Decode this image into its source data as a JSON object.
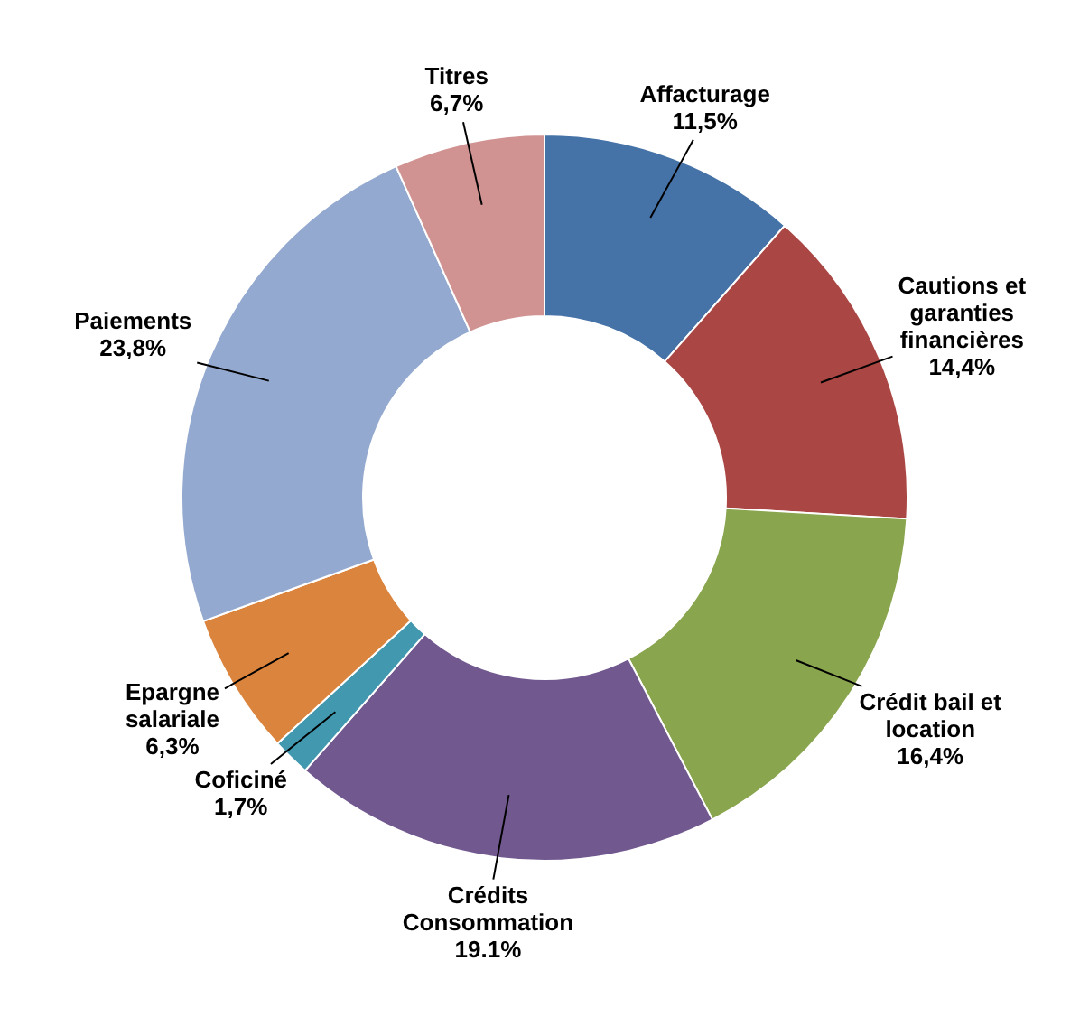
{
  "chart_data": {
    "type": "donut",
    "categories": [
      "Affacturage",
      "Cautions et garanties financières",
      "Crédit bail et location",
      "Crédits Consommation",
      "Coficiné",
      "Epargne salariale",
      "Paiements",
      "Titres"
    ],
    "values": [
      11.5,
      14.4,
      16.4,
      19.1,
      1.7,
      6.3,
      23.8,
      6.7
    ],
    "value_labels": [
      "11,5%",
      "14,4%",
      "16,4%",
      "19.1%",
      "1,7%",
      "6,3%",
      "23,8%",
      "6,7%"
    ],
    "colors": [
      "#4572a7",
      "#aa4643",
      "#89a54e",
      "#71588f",
      "#4198af",
      "#db843d",
      "#93a9cf",
      "#d19392"
    ],
    "legend": false
  }
}
